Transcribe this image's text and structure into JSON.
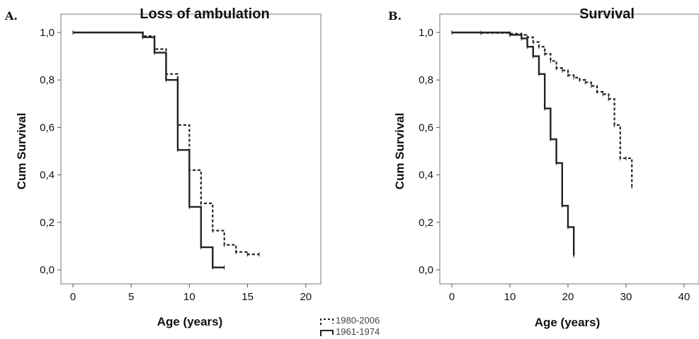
{
  "chart_data": [
    {
      "type": "line",
      "panel": "A.",
      "title": "Loss of ambulation",
      "xlabel": "Age (years)",
      "ylabel": "Cum Survival",
      "xlim": [
        -1,
        21
      ],
      "ylim": [
        -0.05,
        1.05
      ],
      "xticks": [
        "0",
        "5",
        "10",
        "15",
        "20"
      ],
      "yticks": [
        "0,0",
        "0,2",
        "0,4",
        "0,6",
        "0,8",
        "1,0"
      ],
      "grid": false,
      "series": [
        {
          "name": "1980-2006",
          "style": "dashed",
          "x": [
            0,
            6,
            7,
            8,
            9,
            10,
            11,
            12,
            13,
            14,
            15,
            16
          ],
          "y": [
            1.0,
            0.985,
            0.93,
            0.825,
            0.61,
            0.42,
            0.28,
            0.165,
            0.105,
            0.075,
            0.065,
            0.065
          ]
        },
        {
          "name": "1961-1974",
          "style": "solid",
          "x": [
            0,
            6,
            7,
            8,
            9,
            10,
            11,
            12,
            13
          ],
          "y": [
            1.0,
            0.98,
            0.915,
            0.8,
            0.505,
            0.265,
            0.095,
            0.01,
            0.01
          ]
        }
      ]
    },
    {
      "type": "line",
      "panel": "B.",
      "title": "Survival",
      "xlabel": "Age (years)",
      "ylabel": "Cum Survival",
      "xlim": [
        -2,
        43
      ],
      "ylim": [
        -0.05,
        1.05
      ],
      "xticks": [
        "0",
        "10",
        "20",
        "30",
        "40"
      ],
      "yticks": [
        "0,0",
        "0,2",
        "0,4",
        "0,6",
        "0,8",
        "1,0"
      ],
      "grid": false,
      "series": [
        {
          "name": "1980-2006",
          "style": "dashed",
          "x": [
            0,
            5,
            10,
            12,
            13,
            14,
            15,
            16,
            17,
            18,
            19,
            20,
            21,
            22,
            23,
            24,
            25,
            26,
            27,
            28,
            29,
            30,
            31
          ],
          "y": [
            1.0,
            0.998,
            0.995,
            0.99,
            0.98,
            0.96,
            0.94,
            0.91,
            0.88,
            0.85,
            0.84,
            0.82,
            0.81,
            0.8,
            0.79,
            0.775,
            0.75,
            0.74,
            0.72,
            0.61,
            0.47,
            0.47,
            0.35
          ]
        },
        {
          "name": "1961-1974",
          "style": "solid",
          "x": [
            0,
            10,
            12,
            13,
            14,
            15,
            16,
            17,
            18,
            19,
            20,
            21
          ],
          "y": [
            1.0,
            0.99,
            0.975,
            0.94,
            0.9,
            0.825,
            0.68,
            0.55,
            0.45,
            0.27,
            0.18,
            0.06
          ]
        }
      ]
    }
  ],
  "legend": {
    "entries": [
      {
        "name": "1980-2006",
        "style": "dashed"
      },
      {
        "name": "1961-1974",
        "style": "solid"
      }
    ],
    "placement": "bottom-center"
  },
  "colors": {
    "line": "#222222",
    "frame": "#777777",
    "background": "#ffffff"
  }
}
